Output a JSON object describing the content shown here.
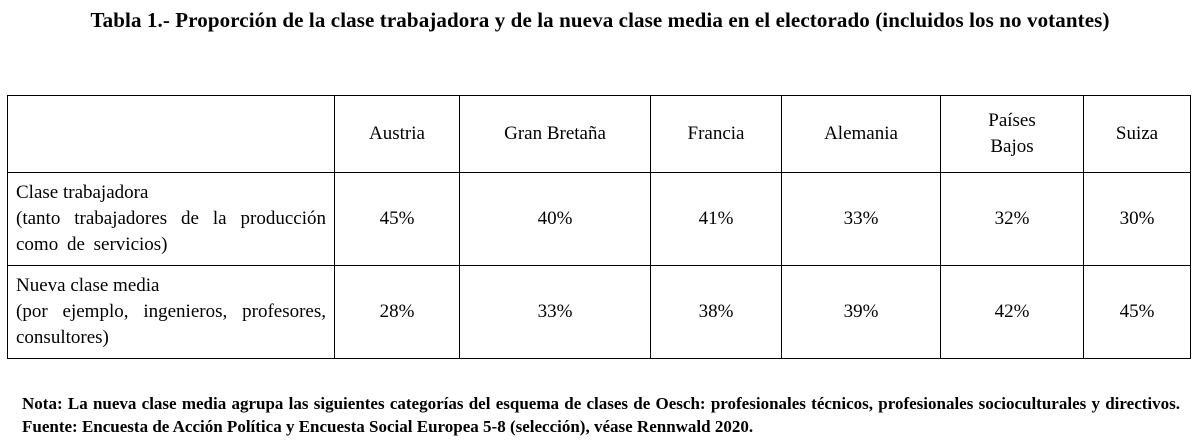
{
  "title": "Tabla 1.- Proporción de la clase trabajadora y de la nueva clase media en el electorado (incluidos los no votantes)",
  "table": {
    "columns": [
      "Austria",
      "Gran Bretaña",
      "Francia",
      "Alemania",
      "Países Bajos",
      "Suiza"
    ],
    "rows": [
      {
        "label": "Clase trabajadora",
        "sublabel": "(tanto trabajadores de la producción como de servicios)",
        "values": [
          "45%",
          "40%",
          "41%",
          "33%",
          "32%",
          "30%"
        ]
      },
      {
        "label": "Nueva clase media",
        "sublabel": "(por ejemplo, ingenieros, profesores, consultores)",
        "values": [
          "28%",
          "33%",
          "38%",
          "39%",
          "42%",
          "45%"
        ]
      }
    ]
  },
  "note": "Nota: La nueva clase media agrupa las siguientes categorías del esquema de clases de Oesch: profesionales técnicos, profesionales socioculturales y directivos. Fuente: Encuesta de Acción Política y Encuesta Social Europea 5-8 (selección), véase Rennwald 2020."
}
